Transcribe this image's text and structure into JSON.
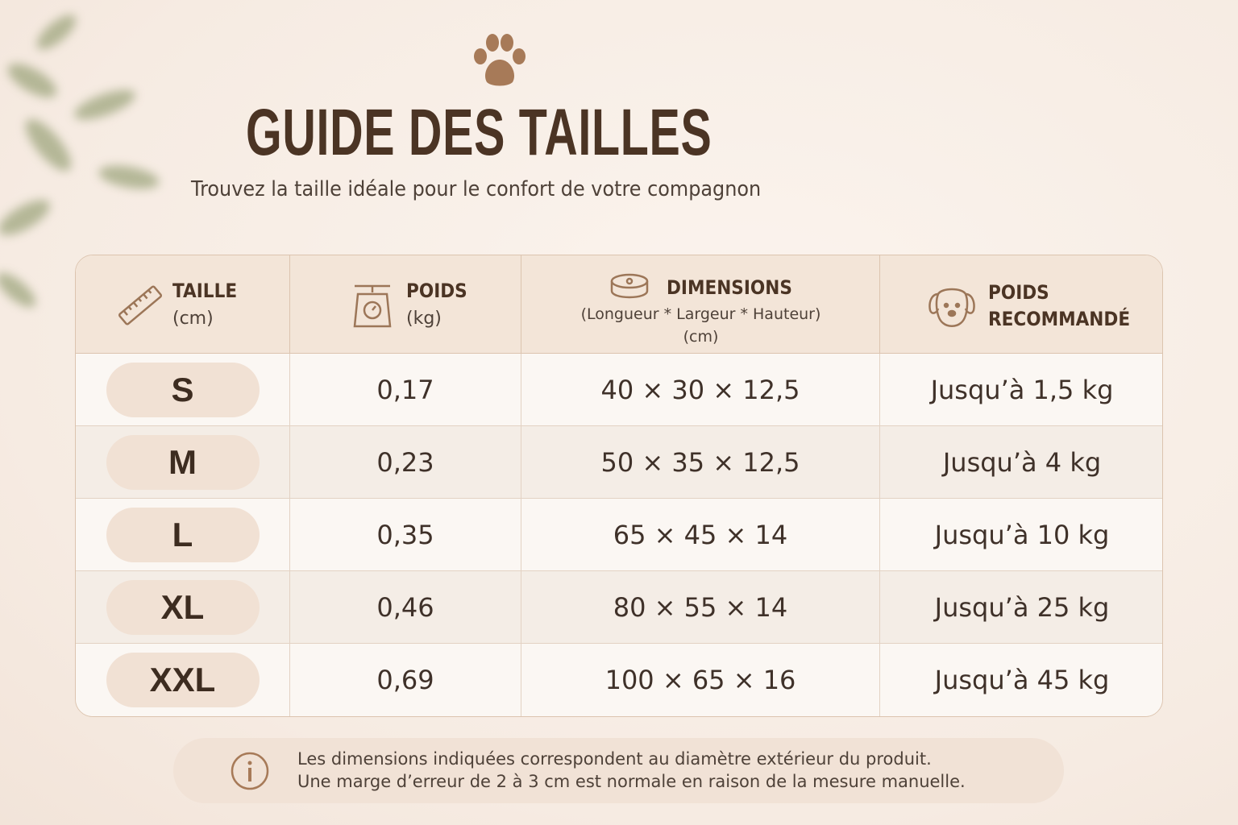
{
  "header": {
    "title": "GUIDE DES TAILLES",
    "subtitle": "Trouvez la taille idéale pour le confort de votre compagnon"
  },
  "table": {
    "columns": [
      {
        "title": "TAILLE",
        "unit": "(cm)"
      },
      {
        "title": "POIDS",
        "unit": "(kg)"
      },
      {
        "title": "DIMENSIONS",
        "detail": "(Longueur * Largeur * Hauteur)",
        "unit": "(cm)"
      },
      {
        "title": "POIDS RECOMMANDÉ"
      }
    ],
    "rows": [
      [
        "S",
        "0,17",
        "40 × 30 × 12,5",
        "Jusqu’à 1,5 kg"
      ],
      [
        "M",
        "0,23",
        "50 × 35 × 12,5",
        "Jusqu’à 4 kg"
      ],
      [
        "L",
        "0,35",
        "65 × 45 × 14",
        "Jusqu’à 10 kg"
      ],
      [
        "XL",
        "0,46",
        "80 × 55 × 14",
        "Jusqu’à 25 kg"
      ],
      [
        "XXL",
        "0,69",
        "100 × 65 × 16",
        "Jusqu’à 45 kg"
      ]
    ]
  },
  "note": {
    "lines": [
      "Les dimensions indiquées correspondent au diamètre extérieur du produit.",
      "Une marge d’erreur de 2 à 3 cm est normale en raison de la mesure manuelle."
    ]
  }
}
